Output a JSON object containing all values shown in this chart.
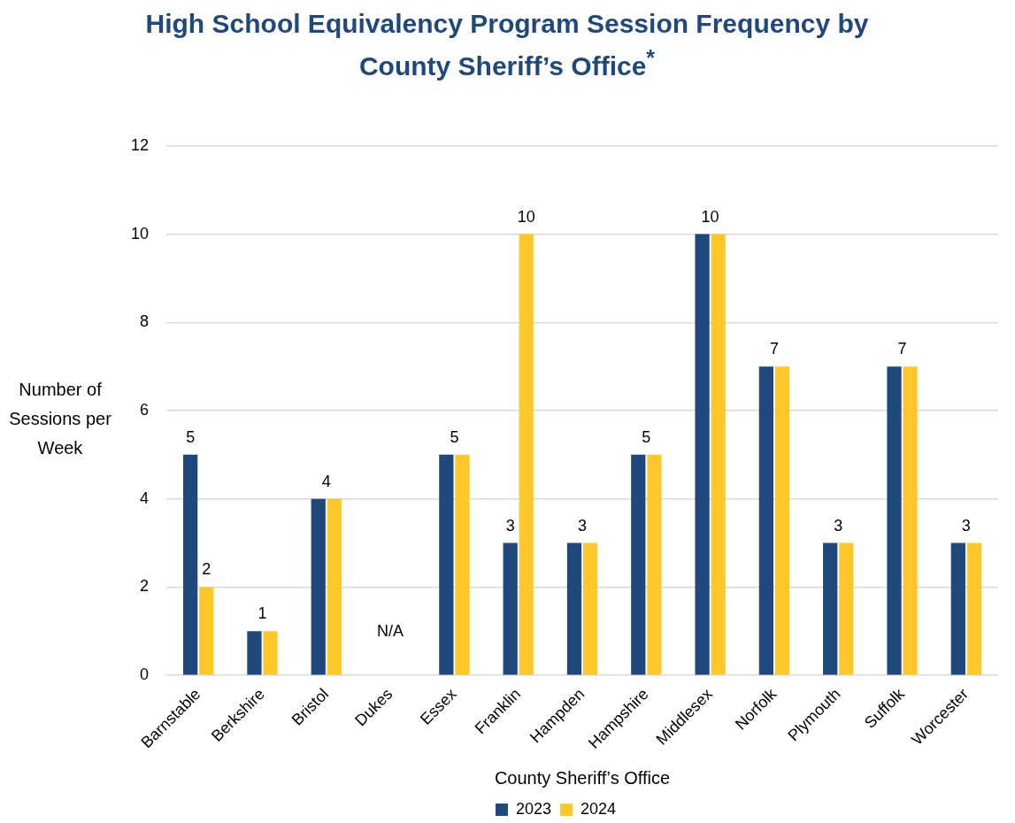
{
  "chart_data": {
    "type": "bar",
    "title": "High School Equivalency Program Session Frequency by County Sheriff’s Office$^{*}$",
    "xlabel": "County Sheriff’s Office",
    "ylabel": "Number of Sessions per Week",
    "categories": [
      "Barnstable",
      "Berkshire",
      "Bristol",
      "Dukes",
      "Essex",
      "Franklin",
      "Hampden",
      "Hampshire",
      "Middlesex",
      "Norfolk",
      "Plymouth",
      "Suffolk",
      "Worcester"
    ],
    "series": [
      {
        "name": "2023",
        "color": "#1f497d",
        "values": [
          5,
          1,
          4,
          null,
          5,
          3,
          3,
          5,
          10,
          7,
          3,
          7,
          3
        ],
        "value_labels": [
          "5",
          null,
          null,
          null,
          null,
          "3",
          null,
          null,
          null,
          null,
          null,
          null,
          null
        ]
      },
      {
        "name": "2024",
        "color": "#ffc729",
        "values": [
          2,
          1,
          4,
          null,
          5,
          10,
          3,
          5,
          10,
          7,
          3,
          7,
          3
        ],
        "value_labels": [
          "2",
          null,
          null,
          null,
          null,
          "10",
          null,
          null,
          null,
          null,
          null,
          null,
          null
        ]
      }
    ],
    "annotations": [
      {
        "text": "1",
        "x": "Berkshire",
        "y": 1
      },
      {
        "text": "4",
        "x": "Bristol",
        "y": 4
      },
      "N/A",
      {
        "text": "5",
        "x": "Essex",
        "y": 5
      },
      {
        "text": "3",
        "x": "Hampden",
        "y": 3
      },
      {
        "text": "5",
        "x": "Hampshire",
        "y": 5
      },
      {
        "text": "10",
        "x": "Middlesex",
        "y": 10
      },
      {
        "text": "7",
        "x": "Norfolk",
        "y": 7
      },
      {
        "text": "3",
        "x": "Plymouth",
        "y": 3
      },
      {
        "text": "7",
        "x": "Suffolk",
        "y": 7
      },
      {
        "text": "3",
        "x": "Worcester",
        "y": 3
      }
    ],
    "ylim": [
      0,
      12
    ],
    "yticks": [
      0,
      2,
      4,
      6,
      8,
      10,
      12
    ],
    "grid": "y",
    "legend": "bottom"
  }
}
